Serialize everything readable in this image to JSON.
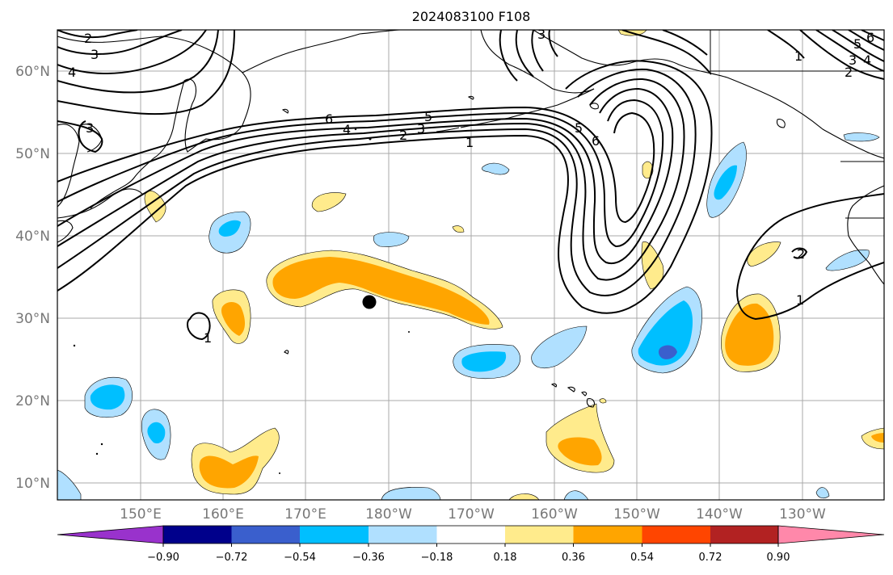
{
  "title": "2024083100 F108",
  "lat_labels": [
    "60°N",
    "50°N",
    "40°N",
    "30°N",
    "20°N",
    "10°N"
  ],
  "lon_labels": [
    "150°E",
    "160°E",
    "170°E",
    "180°W",
    "170°W",
    "160°W",
    "150°W",
    "140°W",
    "130°W"
  ],
  "colorbar": {
    "ticks": [
      "−0.90",
      "−0.72",
      "−0.54",
      "−0.36",
      "−0.18",
      "0.18",
      "0.36",
      "0.54",
      "0.72",
      "0.90"
    ],
    "colors": [
      "#9932cc",
      "#00008b",
      "#3a5fcd",
      "#00bfff",
      "#b0e0ff",
      "#ffffff",
      "#ffeb8c",
      "#ffa500",
      "#ff4500",
      "#b22222",
      "#ff88aa"
    ]
  },
  "contour_labels": {
    "c1": "1",
    "c2": "2",
    "c3": "3",
    "c4": "4",
    "c5": "5",
    "c6": "6"
  },
  "marker": "storm-center-dot"
}
